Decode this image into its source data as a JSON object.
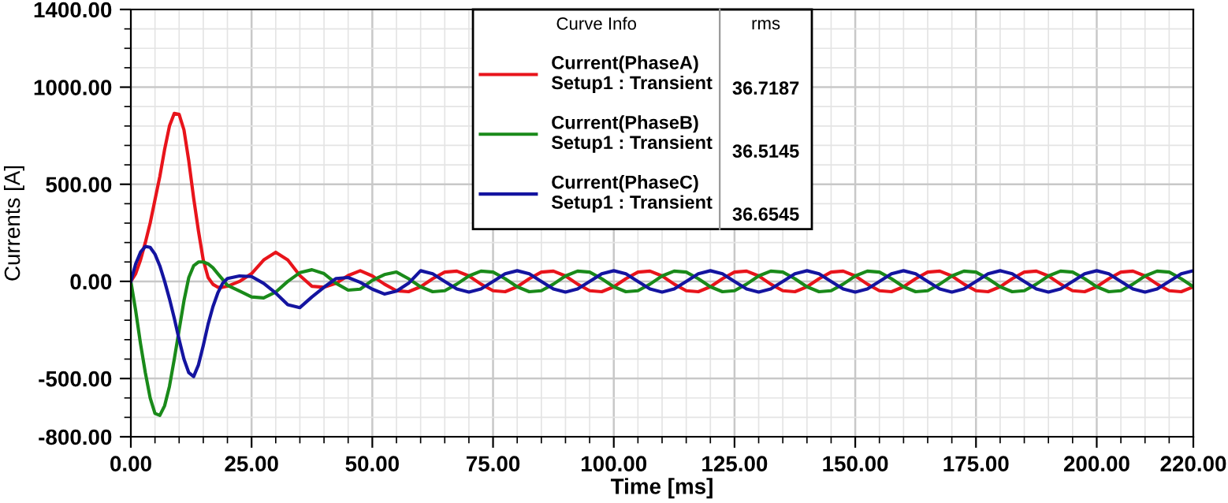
{
  "chart_data": {
    "type": "line",
    "xlabel": "Time [ms]",
    "ylabel": "Currents [A]",
    "legend_title": "Curve Info",
    "annotations": [
      "rms",
      "36.7187",
      "36.5145",
      "36.6545"
    ],
    "x": [
      0,
      1,
      2,
      3,
      4,
      5,
      6,
      7,
      8,
      9,
      10,
      11,
      12,
      13,
      14,
      15,
      16,
      17,
      18,
      19,
      20,
      22.5,
      25,
      27.5,
      30,
      32.5,
      35,
      37.5,
      40,
      42.5,
      45,
      47.5,
      50,
      52.5,
      55,
      57.5,
      60,
      62.5,
      65,
      67.5,
      70,
      72.5,
      75,
      77.5,
      80,
      82.5,
      85,
      87.5,
      90,
      92.5,
      95,
      97.5,
      100,
      102.5,
      105,
      107.5,
      110,
      112.5,
      115,
      117.5,
      120,
      122.5,
      125,
      127.5,
      130,
      132.5,
      135,
      137.5,
      140,
      142.5,
      145,
      147.5,
      150,
      152.5,
      155,
      157.5,
      160,
      162.5,
      165,
      167.5,
      170,
      172.5,
      175,
      177.5,
      180,
      182.5,
      185,
      187.5,
      190,
      192.5,
      195,
      197.5,
      200,
      202.5,
      205,
      207.5,
      210,
      212.5,
      215,
      217.5,
      220
    ],
    "series": [
      {
        "name": "Current(PhaseA)\nSetup1 : Transient",
        "color": "#e8141b",
        "values": [
          0,
          40,
          110,
          200,
          300,
          420,
          540,
          680,
          800,
          865,
          860,
          780,
          620,
          430,
          260,
          110,
          20,
          -15,
          -30,
          -30,
          -25,
          0,
          40,
          110,
          150,
          110,
          30,
          -25,
          -30,
          -10,
          30,
          55,
          28,
          -14,
          -48,
          -53,
          -28,
          14,
          48,
          53,
          28,
          -14,
          -48,
          -53,
          -28,
          14,
          48,
          53,
          28,
          -14,
          -48,
          -53,
          -28,
          14,
          48,
          53,
          28,
          -14,
          -48,
          -53,
          -28,
          14,
          48,
          53,
          28,
          -14,
          -48,
          -53,
          -28,
          14,
          48,
          53,
          28,
          -14,
          -48,
          -53,
          -28,
          14,
          48,
          53,
          28,
          -14,
          -48,
          -53,
          -28,
          14,
          48,
          53,
          28,
          -14,
          -48,
          -53,
          -28,
          14,
          48,
          53,
          28,
          -14,
          -48,
          -53,
          -28
        ]
      },
      {
        "name": "Current(PhaseB)\nSetup1 : Transient",
        "color": "#1a8a1a",
        "values": [
          0,
          -150,
          -320,
          -470,
          -600,
          -680,
          -690,
          -640,
          -540,
          -400,
          -250,
          -100,
          20,
          80,
          100,
          100,
          90,
          70,
          40,
          10,
          -20,
          -50,
          -80,
          -85,
          -55,
          0,
          45,
          60,
          40,
          -10,
          -45,
          -40,
          5,
          35,
          48,
          14,
          -28,
          -53,
          -48,
          -14,
          28,
          53,
          48,
          14,
          -28,
          -53,
          -48,
          -14,
          28,
          53,
          48,
          14,
          -28,
          -53,
          -48,
          -14,
          28,
          53,
          48,
          14,
          -28,
          -53,
          -48,
          -14,
          28,
          53,
          48,
          14,
          -28,
          -53,
          -48,
          -14,
          28,
          53,
          48,
          14,
          -28,
          -53,
          -48,
          -14,
          28,
          53,
          48,
          14,
          -28,
          -53,
          -48,
          -14,
          28,
          53,
          48,
          14,
          -28,
          -53,
          -48,
          -14,
          28,
          53,
          48,
          14,
          -28
        ]
      },
      {
        "name": "Current(PhaseC)\nSetup1 : Transient",
        "color": "#1414a0",
        "values": [
          0,
          90,
          150,
          180,
          175,
          140,
          80,
          0,
          -90,
          -190,
          -300,
          -400,
          -470,
          -490,
          -430,
          -330,
          -220,
          -130,
          -60,
          -10,
          15,
          28,
          25,
          -10,
          -60,
          -120,
          -135,
          -80,
          -30,
          15,
          20,
          -5,
          -40,
          -65,
          -50,
          -10,
          55,
          39,
          0,
          -39,
          -55,
          -39,
          0,
          39,
          55,
          39,
          0,
          -39,
          -55,
          -39,
          0,
          39,
          55,
          39,
          0,
          -39,
          -55,
          -39,
          0,
          39,
          55,
          39,
          0,
          -39,
          -55,
          -39,
          0,
          39,
          55,
          39,
          0,
          -39,
          -55,
          -39,
          0,
          39,
          55,
          39,
          0,
          -39,
          -55,
          -39,
          0,
          39,
          55,
          39,
          0,
          -39,
          -55,
          -39,
          0,
          39,
          55,
          39,
          0,
          -39,
          -55,
          -39,
          0,
          39,
          55
        ]
      }
    ],
    "xlim": [
      0,
      220
    ],
    "xticks": [
      {
        "value": 0,
        "label": "0.00"
      },
      {
        "value": 25,
        "label": "25.00"
      },
      {
        "value": 50,
        "label": "50.00"
      },
      {
        "value": 75,
        "label": "75.00"
      },
      {
        "value": 100,
        "label": "100.00"
      },
      {
        "value": 125,
        "label": "125.00"
      },
      {
        "value": 150,
        "label": "150.00"
      },
      {
        "value": 175,
        "label": "175.00"
      },
      {
        "value": 200,
        "label": "200.00"
      },
      {
        "value": 220,
        "label": "220.00"
      }
    ],
    "ylim": [
      -800,
      1400
    ],
    "yticks": [
      {
        "value": -800,
        "label": "-800.00"
      },
      {
        "value": -500,
        "label": "-500.00"
      },
      {
        "value": 0,
        "label": "0.00"
      },
      {
        "value": 500,
        "label": "500.00"
      },
      {
        "value": 1000,
        "label": "1000.00"
      },
      {
        "value": 1400,
        "label": "1400.00"
      }
    ],
    "grid": true,
    "legend": "top",
    "line_style": "solid",
    "marker": "none"
  }
}
